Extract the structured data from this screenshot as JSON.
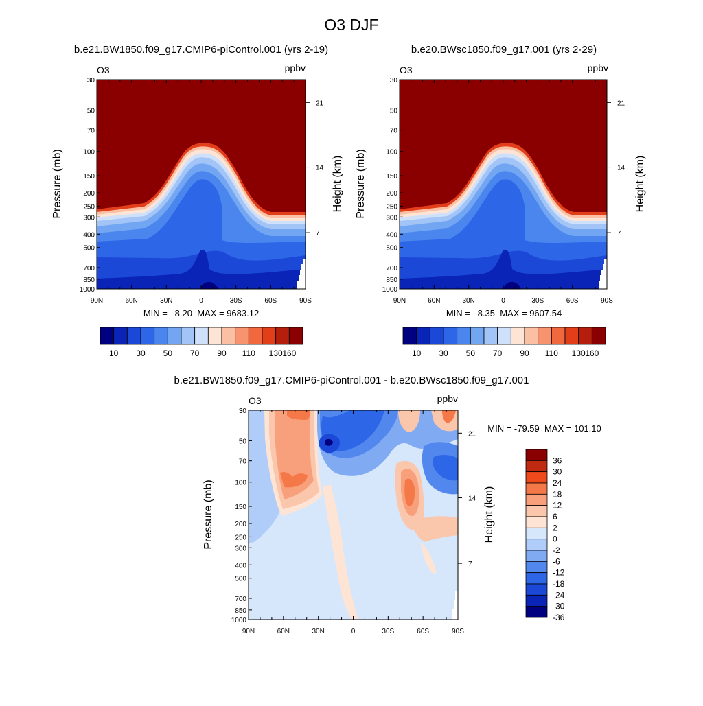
{
  "figure": {
    "title": "O3 DJF"
  },
  "colors": {
    "abs_levels": [
      "#000080",
      "#0a24b8",
      "#1c48d8",
      "#2e66e8",
      "#4a86ee",
      "#72a6f2",
      "#a2c4f6",
      "#cfe0fa",
      "#fde4d4",
      "#fbc0a4",
      "#f7936e",
      "#f2683e",
      "#e23e1a",
      "#b51e0c",
      "#8a0000"
    ],
    "diff_levels": [
      "#000080",
      "#0a24b8",
      "#1c48d8",
      "#2e66e8",
      "#5288ee",
      "#80aaf2",
      "#b0ccf8",
      "#d6e6fb",
      "#fde4d4",
      "#fbc7ac",
      "#f8a07c",
      "#f57848",
      "#ee4a1c",
      "#c02a10",
      "#8a0000"
    ]
  },
  "chart_data": [
    {
      "type": "contour",
      "id": "ctrl",
      "title": "b.e21.BW1850.f09_g17.CMIP6-piControl.001 (yrs 2-19)",
      "variable": "O3",
      "units": "ppbv",
      "xlabel": "",
      "ylabel": "Pressure (mb)",
      "y2label": "Height (km)",
      "x_ticks": [
        "90N",
        "60N",
        "30N",
        "0",
        "30S",
        "60S",
        "90S"
      ],
      "y_ticks": [
        "30",
        "50",
        "70",
        "100",
        "150",
        "200",
        "250",
        "300",
        "400",
        "500",
        "700",
        "850",
        "1000"
      ],
      "y2_ticks": [
        "21",
        "14",
        "7"
      ],
      "stats_label": "MIN =   8.20  MAX = 9683.12",
      "min": 8.2,
      "max": 9683.12,
      "colorbar_labels": [
        "10",
        "30",
        "50",
        "70",
        "90",
        "110",
        "130",
        "160"
      ],
      "levels": [
        10,
        20,
        30,
        40,
        50,
        60,
        70,
        80,
        90,
        100,
        110,
        120,
        130,
        140,
        160
      ]
    },
    {
      "type": "contour",
      "id": "test",
      "title": "b.e20.BWsc1850.f09_g17.001 (yrs 2-29)",
      "variable": "O3",
      "units": "ppbv",
      "xlabel": "",
      "ylabel": "Pressure (mb)",
      "y2label": "Height (km)",
      "x_ticks": [
        "90N",
        "60N",
        "30N",
        "0",
        "30S",
        "60S",
        "90S"
      ],
      "y_ticks": [
        "30",
        "50",
        "70",
        "100",
        "150",
        "200",
        "250",
        "300",
        "400",
        "500",
        "700",
        "850",
        "1000"
      ],
      "y2_ticks": [
        "21",
        "14",
        "7"
      ],
      "stats_label": "MIN =   8.35  MAX = 9607.54",
      "min": 8.35,
      "max": 9607.54,
      "colorbar_labels": [
        "10",
        "30",
        "50",
        "70",
        "90",
        "110",
        "130",
        "160"
      ],
      "levels": [
        10,
        20,
        30,
        40,
        50,
        60,
        70,
        80,
        90,
        100,
        110,
        120,
        130,
        140,
        160
      ]
    },
    {
      "type": "contour",
      "id": "diff",
      "title": "b.e21.BW1850.f09_g17.CMIP6-piControl.001 - b.e20.BWsc1850.f09_g17.001",
      "variable": "O3",
      "units": "ppbv",
      "xlabel": "",
      "ylabel": "Pressure (mb)",
      "y2label": "Height (km)",
      "x_ticks": [
        "90N",
        "60N",
        "30N",
        "0",
        "30S",
        "60S",
        "90S"
      ],
      "y_ticks": [
        "30",
        "50",
        "70",
        "100",
        "150",
        "200",
        "250",
        "300",
        "400",
        "500",
        "700",
        "850",
        "1000"
      ],
      "y2_ticks": [
        "21",
        "14",
        "7"
      ],
      "stats_label": "MIN = -79.59  MAX = 101.10",
      "min": -79.59,
      "max": 101.1,
      "colorbar_labels": [
        "36",
        "30",
        "24",
        "18",
        "12",
        "6",
        "2",
        "0",
        "-2",
        "-6",
        "-12",
        "-18",
        "-24",
        "-30",
        "-36"
      ],
      "levels": [
        -36,
        -30,
        -24,
        -18,
        -12,
        -6,
        -2,
        0,
        2,
        6,
        12,
        18,
        24,
        30,
        36
      ]
    }
  ]
}
